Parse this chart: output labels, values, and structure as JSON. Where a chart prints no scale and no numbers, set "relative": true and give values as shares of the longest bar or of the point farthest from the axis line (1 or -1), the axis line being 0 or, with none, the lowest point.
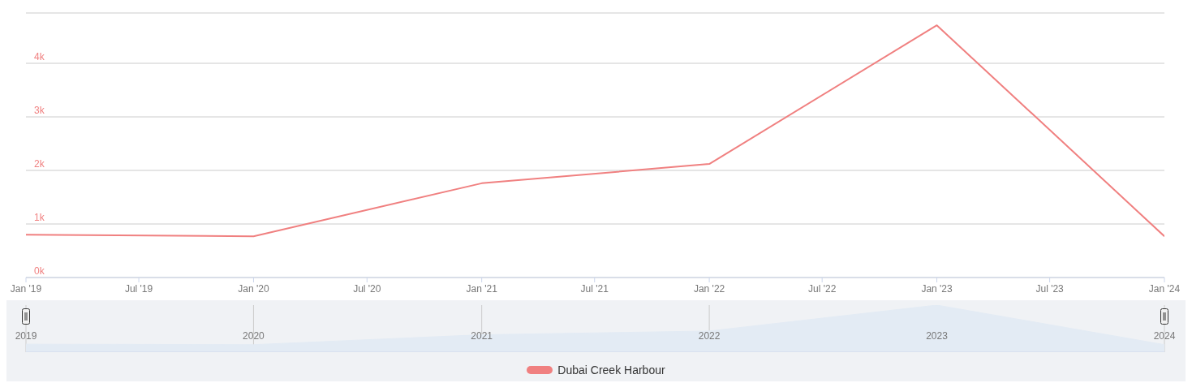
{
  "chart_data": [
    {
      "type": "line",
      "x": [
        "2019-01",
        "2020-01",
        "2021-01",
        "2022-01",
        "2023-01",
        "2024-01"
      ],
      "series": [
        {
          "name": "Dubai Creek Harbour",
          "color": "#f08080",
          "values": [
            800,
            770,
            1760,
            2120,
            4710,
            770
          ]
        }
      ],
      "xlim": [
        "2019-01",
        "2024-01"
      ],
      "xticks": [
        {
          "value": "2019-01",
          "label": "Jan '19"
        },
        {
          "value": "2019-07",
          "label": "Jul '19"
        },
        {
          "value": "2020-01",
          "label": "Jan '20"
        },
        {
          "value": "2020-07",
          "label": "Jul '20"
        },
        {
          "value": "2021-01",
          "label": "Jan '21"
        },
        {
          "value": "2021-07",
          "label": "Jul '21"
        },
        {
          "value": "2022-01",
          "label": "Jan '22"
        },
        {
          "value": "2022-07",
          "label": "Jul '22"
        },
        {
          "value": "2023-01",
          "label": "Jan '23"
        },
        {
          "value": "2023-07",
          "label": "Jul '23"
        },
        {
          "value": "2024-01",
          "label": "Jan '24"
        }
      ],
      "ylim": [
        0,
        4940
      ],
      "yticks": [
        {
          "value": 0,
          "label": "0k"
        },
        {
          "value": 1000,
          "label": "1k"
        },
        {
          "value": 2000,
          "label": "2k"
        },
        {
          "value": 3000,
          "label": "3k"
        },
        {
          "value": 4000,
          "label": "4k"
        }
      ],
      "grid": "y",
      "legend": "bottom",
      "marker": "none",
      "line_style": "solid"
    },
    {
      "type": "area",
      "relative": true,
      "x": [
        "2019-01",
        "2020-01",
        "2021-01",
        "2022-01",
        "2023-01",
        "2024-01"
      ],
      "values": [
        0.17,
        0.16,
        0.37,
        0.45,
        1,
        0.16
      ],
      "color": "#e3ebf4",
      "xlim": [
        "2019-01",
        "2024-01"
      ],
      "xticks": [
        {
          "value": "2019-01",
          "label": "2019"
        },
        {
          "value": "2020-01",
          "label": "2020"
        },
        {
          "value": "2021-01",
          "label": "2021"
        },
        {
          "value": "2022-01",
          "label": "2022"
        },
        {
          "value": "2023-01",
          "label": "2023"
        },
        {
          "value": "2024-01",
          "label": "2024"
        }
      ],
      "tick_labels": "x",
      "grid": "x"
    }
  ]
}
